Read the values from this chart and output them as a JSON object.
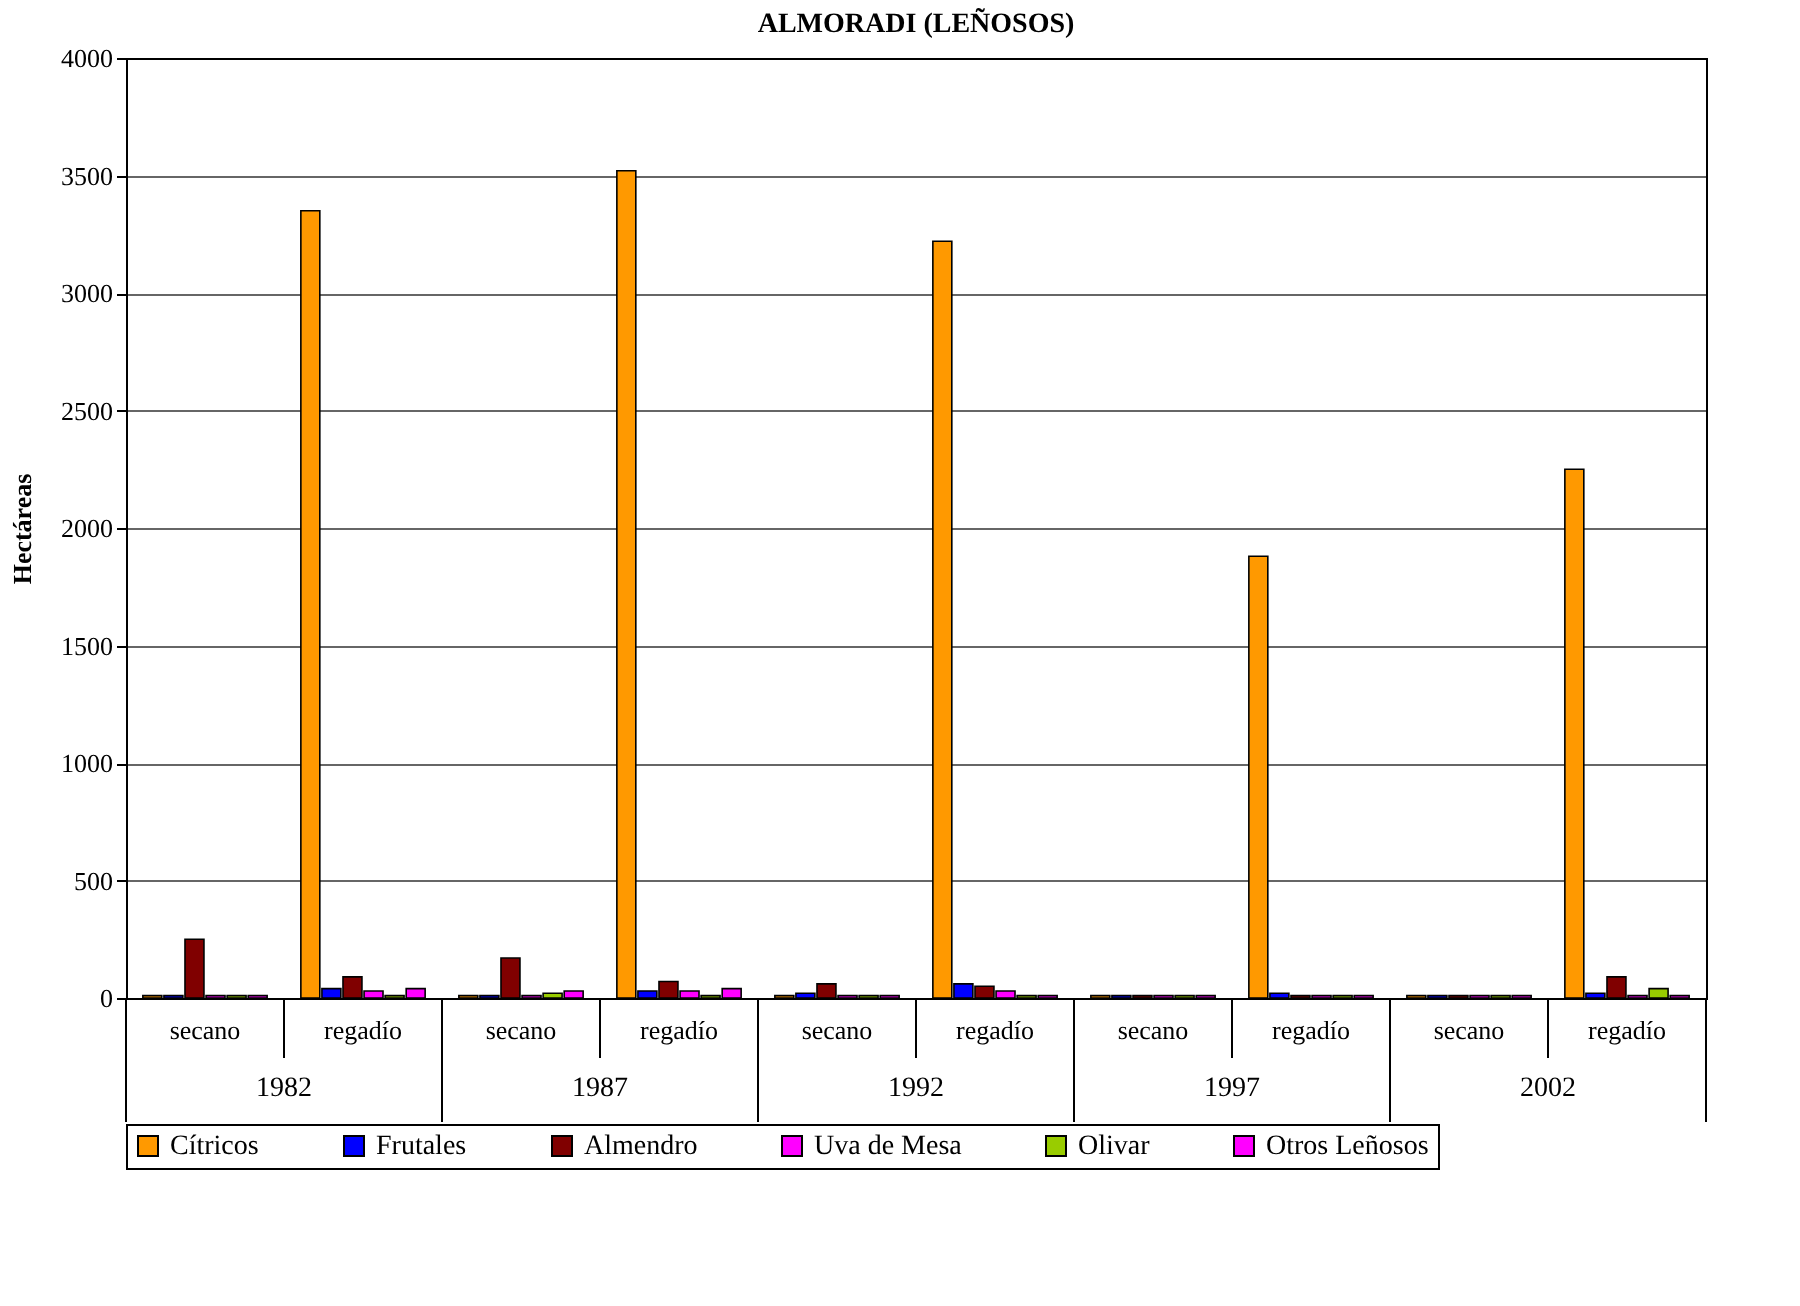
{
  "chart_data": {
    "type": "bar",
    "title": "ALMORADI (LEÑOSOS)",
    "ylabel": "Hectáreas",
    "categories": [
      "secano",
      "regadío",
      "secano",
      "regadío",
      "secano",
      "regadío",
      "secano",
      "regadío",
      "secano",
      "regadío"
    ],
    "annotations": [
      "1982",
      "1987",
      "1992",
      "1997",
      "2002"
    ],
    "series": [
      {
        "name": "Cítricos",
        "color": "#ff9900",
        "values": [
          10,
          3350,
          10,
          3520,
          10,
          3220,
          10,
          1880,
          10,
          2250
        ]
      },
      {
        "name": "Frutales",
        "color": "#0000ff",
        "values": [
          10,
          40,
          10,
          30,
          20,
          60,
          10,
          20,
          10,
          20
        ]
      },
      {
        "name": "Almendro",
        "color": "#800000",
        "values": [
          250,
          90,
          170,
          70,
          60,
          50,
          10,
          10,
          10,
          90
        ]
      },
      {
        "name": "Uva de Mesa",
        "color": "#ff00ff",
        "values": [
          10,
          30,
          10,
          30,
          10,
          30,
          10,
          10,
          10,
          10
        ]
      },
      {
        "name": "Olivar",
        "color": "#99cc00",
        "values": [
          10,
          10,
          20,
          10,
          10,
          10,
          10,
          10,
          10,
          40
        ]
      },
      {
        "name": "Otros Leñosos",
        "color": "#ff00ff",
        "values": [
          10,
          40,
          30,
          40,
          10,
          10,
          10,
          10,
          10,
          10
        ]
      }
    ],
    "ylim": [
      0,
      4000
    ],
    "yticks": [
      0,
      500,
      1000,
      1500,
      2000,
      2500,
      3000,
      3500,
      4000
    ],
    "grid": "y",
    "legend": "bottom"
  }
}
